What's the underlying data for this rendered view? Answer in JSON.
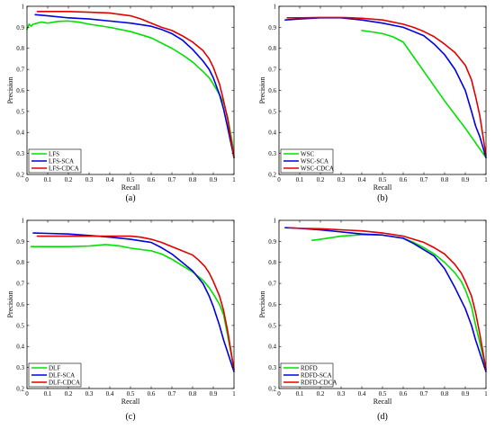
{
  "chart_data": [
    {
      "type": "line",
      "caption": "(a)",
      "xlabel": "Recall",
      "ylabel": "Precision",
      "xlim": [
        0,
        1
      ],
      "ylim": [
        0.2,
        1
      ],
      "xticks": [
        "0",
        "0.1",
        "0.2",
        "0.3",
        "0.4",
        "0.5",
        "0.6",
        "0.7",
        "0.8",
        "0.9",
        "1"
      ],
      "yticks": [
        "0.2",
        "0.3",
        "0.4",
        "0.5",
        "0.6",
        "0.7",
        "0.8",
        "0.9",
        "1"
      ],
      "grid": false,
      "legend": "bottom-left",
      "series": [
        {
          "name": "LFS",
          "color": "#00e000",
          "x": [
            0.0,
            0.01,
            0.02,
            0.03,
            0.05,
            0.07,
            0.1,
            0.15,
            0.2,
            0.25,
            0.3,
            0.4,
            0.5,
            0.6,
            0.7,
            0.75,
            0.8,
            0.85,
            0.88,
            0.9,
            0.93,
            0.95,
            0.97,
            0.99,
            1.0
          ],
          "y": [
            0.89,
            0.915,
            0.905,
            0.915,
            0.92,
            0.925,
            0.92,
            0.928,
            0.93,
            0.925,
            0.915,
            0.9,
            0.88,
            0.85,
            0.8,
            0.77,
            0.735,
            0.69,
            0.66,
            0.63,
            0.58,
            0.54,
            0.47,
            0.36,
            0.29
          ]
        },
        {
          "name": "LFS-SCA",
          "color": "#0000e0",
          "x": [
            0.04,
            0.1,
            0.2,
            0.3,
            0.4,
            0.5,
            0.6,
            0.65,
            0.7,
            0.75,
            0.8,
            0.85,
            0.88,
            0.9,
            0.93,
            0.95,
            0.97,
            1.0
          ],
          "y": [
            0.96,
            0.955,
            0.945,
            0.94,
            0.93,
            0.92,
            0.905,
            0.89,
            0.87,
            0.84,
            0.795,
            0.74,
            0.7,
            0.66,
            0.58,
            0.51,
            0.42,
            0.28
          ]
        },
        {
          "name": "LFS-CDCA",
          "color": "#e00000",
          "x": [
            0.05,
            0.1,
            0.2,
            0.3,
            0.4,
            0.5,
            0.55,
            0.6,
            0.65,
            0.7,
            0.75,
            0.8,
            0.85,
            0.88,
            0.9,
            0.93,
            0.95,
            0.97,
            1.0
          ],
          "y": [
            0.975,
            0.975,
            0.975,
            0.972,
            0.968,
            0.955,
            0.94,
            0.92,
            0.9,
            0.885,
            0.86,
            0.83,
            0.79,
            0.75,
            0.71,
            0.63,
            0.55,
            0.46,
            0.28
          ]
        }
      ]
    },
    {
      "type": "line",
      "caption": "(b)",
      "xlabel": "Recall",
      "ylabel": "Precision",
      "xlim": [
        0,
        1
      ],
      "ylim": [
        0.2,
        1
      ],
      "xticks": [
        "0",
        "0.1",
        "0.2",
        "0.3",
        "0.4",
        "0.5",
        "0.6",
        "0.7",
        "0.8",
        "0.9",
        "1"
      ],
      "yticks": [
        "0.2",
        "0.3",
        "0.4",
        "0.5",
        "0.6",
        "0.7",
        "0.8",
        "0.9",
        "1"
      ],
      "grid": false,
      "legend": "bottom-left",
      "series": [
        {
          "name": "WSC",
          "color": "#00e000",
          "x": [
            0.4,
            0.45,
            0.5,
            0.55,
            0.6,
            0.7,
            0.8,
            0.9,
            1.0
          ],
          "y": [
            0.885,
            0.878,
            0.87,
            0.855,
            0.83,
            0.69,
            0.55,
            0.42,
            0.28
          ]
        },
        {
          "name": "WSC-SCA",
          "color": "#0000e0",
          "x": [
            0.03,
            0.1,
            0.2,
            0.3,
            0.4,
            0.5,
            0.6,
            0.65,
            0.7,
            0.75,
            0.8,
            0.85,
            0.9,
            0.93,
            0.95,
            0.97,
            1.0
          ],
          "y": [
            0.935,
            0.94,
            0.945,
            0.945,
            0.935,
            0.92,
            0.9,
            0.88,
            0.86,
            0.82,
            0.77,
            0.7,
            0.6,
            0.5,
            0.43,
            0.38,
            0.28
          ]
        },
        {
          "name": "WSC-CDCA",
          "color": "#e00000",
          "x": [
            0.04,
            0.1,
            0.2,
            0.3,
            0.4,
            0.5,
            0.6,
            0.65,
            0.7,
            0.75,
            0.8,
            0.85,
            0.9,
            0.93,
            0.95,
            0.97,
            1.0
          ],
          "y": [
            0.945,
            0.945,
            0.947,
            0.947,
            0.943,
            0.935,
            0.915,
            0.9,
            0.88,
            0.855,
            0.82,
            0.78,
            0.72,
            0.65,
            0.57,
            0.48,
            0.29
          ]
        }
      ]
    },
    {
      "type": "line",
      "caption": "(c)",
      "xlabel": "Recall",
      "ylabel": "Precision",
      "xlim": [
        0,
        1
      ],
      "ylim": [
        0.2,
        1
      ],
      "xticks": [
        "0",
        "0.1",
        "0.2",
        "0.3",
        "0.4",
        "0.5",
        "0.6",
        "0.7",
        "0.8",
        "0.9",
        "1"
      ],
      "yticks": [
        "0.2",
        "0.3",
        "0.4",
        "0.5",
        "0.6",
        "0.7",
        "0.8",
        "0.9",
        "1"
      ],
      "grid": false,
      "legend": "bottom-left",
      "series": [
        {
          "name": "DLF",
          "color": "#00e000",
          "x": [
            0.02,
            0.1,
            0.2,
            0.3,
            0.38,
            0.45,
            0.5,
            0.6,
            0.65,
            0.7,
            0.75,
            0.8,
            0.85,
            0.88,
            0.9,
            0.93,
            0.95,
            0.97,
            1.0
          ],
          "y": [
            0.875,
            0.875,
            0.875,
            0.878,
            0.885,
            0.878,
            0.868,
            0.855,
            0.84,
            0.815,
            0.785,
            0.755,
            0.715,
            0.68,
            0.65,
            0.6,
            0.55,
            0.45,
            0.29
          ]
        },
        {
          "name": "DLF-SCA",
          "color": "#0000e0",
          "x": [
            0.03,
            0.1,
            0.2,
            0.3,
            0.4,
            0.5,
            0.6,
            0.65,
            0.7,
            0.75,
            0.8,
            0.85,
            0.88,
            0.9,
            0.93,
            0.95,
            0.97,
            1.0
          ],
          "y": [
            0.94,
            0.938,
            0.935,
            0.928,
            0.92,
            0.91,
            0.895,
            0.87,
            0.84,
            0.8,
            0.76,
            0.7,
            0.64,
            0.59,
            0.5,
            0.43,
            0.37,
            0.28
          ]
        },
        {
          "name": "DLF-CDCA",
          "color": "#e00000",
          "x": [
            0.05,
            0.1,
            0.2,
            0.3,
            0.4,
            0.5,
            0.55,
            0.6,
            0.65,
            0.7,
            0.75,
            0.8,
            0.83,
            0.86,
            0.88,
            0.9,
            0.93,
            0.95,
            0.97,
            1.0
          ],
          "y": [
            0.925,
            0.925,
            0.925,
            0.925,
            0.925,
            0.925,
            0.92,
            0.91,
            0.895,
            0.875,
            0.855,
            0.835,
            0.81,
            0.78,
            0.75,
            0.71,
            0.64,
            0.57,
            0.47,
            0.29
          ]
        }
      ]
    },
    {
      "type": "line",
      "caption": "(d)",
      "xlabel": "Recall",
      "ylabel": "Precision",
      "xlim": [
        0,
        1
      ],
      "ylim": [
        0.2,
        1
      ],
      "xticks": [
        "0",
        "0.1",
        "0.2",
        "0.3",
        "0.4",
        "0.5",
        "0.6",
        "0.7",
        "0.8",
        "0.9",
        "1"
      ],
      "yticks": [
        "0.2",
        "0.3",
        "0.4",
        "0.5",
        "0.6",
        "0.7",
        "0.8",
        "0.9",
        "1"
      ],
      "grid": false,
      "legend": "bottom-left",
      "series": [
        {
          "name": "RDFD",
          "color": "#00e000",
          "x": [
            0.16,
            0.2,
            0.3,
            0.4,
            0.5,
            0.6,
            0.65,
            0.7,
            0.75,
            0.8,
            0.85,
            0.88,
            0.9,
            0.93,
            0.95,
            0.97,
            1.0
          ],
          "y": [
            0.905,
            0.91,
            0.925,
            0.932,
            0.93,
            0.915,
            0.895,
            0.87,
            0.84,
            0.8,
            0.75,
            0.71,
            0.67,
            0.59,
            0.5,
            0.42,
            0.29
          ]
        },
        {
          "name": "RDFD-SCA",
          "color": "#0000e0",
          "x": [
            0.03,
            0.1,
            0.2,
            0.3,
            0.4,
            0.5,
            0.6,
            0.65,
            0.7,
            0.75,
            0.8,
            0.85,
            0.9,
            0.93,
            0.95,
            0.97,
            1.0
          ],
          "y": [
            0.965,
            0.962,
            0.955,
            0.945,
            0.935,
            0.93,
            0.915,
            0.89,
            0.86,
            0.83,
            0.77,
            0.68,
            0.58,
            0.5,
            0.43,
            0.37,
            0.28
          ]
        },
        {
          "name": "RDFD-CDCA",
          "color": "#e00000",
          "x": [
            0.05,
            0.1,
            0.2,
            0.3,
            0.4,
            0.5,
            0.6,
            0.65,
            0.7,
            0.75,
            0.8,
            0.85,
            0.88,
            0.9,
            0.93,
            0.95,
            0.97,
            1.0
          ],
          "y": [
            0.965,
            0.962,
            0.96,
            0.955,
            0.95,
            0.94,
            0.925,
            0.91,
            0.895,
            0.87,
            0.84,
            0.79,
            0.75,
            0.71,
            0.64,
            0.56,
            0.46,
            0.29
          ]
        }
      ]
    }
  ]
}
